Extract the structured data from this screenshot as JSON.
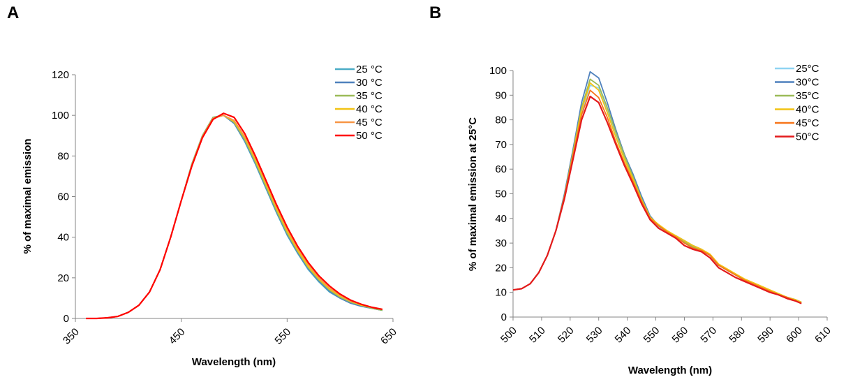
{
  "chart_data": [
    {
      "panel_label": "A",
      "type": "line",
      "xlabel": "Wavelength (nm)",
      "ylabel": "% of maximal emission",
      "xlim": [
        350,
        650
      ],
      "ylim": [
        0,
        120
      ],
      "xticks": [
        350,
        450,
        550,
        650
      ],
      "yticks": [
        0,
        20,
        40,
        60,
        80,
        100,
        120
      ],
      "grid": false,
      "legend_position": "top-right",
      "x": [
        360,
        370,
        380,
        390,
        400,
        410,
        420,
        430,
        440,
        450,
        460,
        470,
        480,
        490,
        500,
        510,
        520,
        530,
        540,
        550,
        560,
        570,
        580,
        590,
        600,
        610,
        620,
        630,
        640
      ],
      "series": [
        {
          "name": "25 °C",
          "color": "#4bacc6",
          "values": [
            0,
            0,
            0.3,
            1,
            3,
            6.5,
            13,
            24,
            40,
            58,
            76,
            90,
            99,
            100,
            96,
            87,
            76,
            64,
            52,
            41,
            32,
            24,
            18,
            13,
            10,
            7.5,
            6,
            5,
            4
          ]
        },
        {
          "name": "30 °C",
          "color": "#4f81bd",
          "values": [
            0,
            0,
            0.3,
            1,
            3,
            6.5,
            13,
            24,
            40,
            58,
            76,
            90,
            99,
            100,
            96,
            87.5,
            76.5,
            64.5,
            52.5,
            41.5,
            32.5,
            24.5,
            18.5,
            13.5,
            10,
            7.5,
            6,
            5,
            4
          ]
        },
        {
          "name": "35 °C",
          "color": "#9bbb59",
          "values": [
            0,
            0,
            0.3,
            1,
            3,
            6.5,
            13,
            24,
            40,
            58,
            76,
            90,
            99,
            100,
            96.5,
            88,
            77,
            65,
            53,
            42,
            33,
            25,
            19,
            14,
            10.5,
            8,
            6.5,
            5,
            4
          ]
        },
        {
          "name": "40 °C",
          "color": "#f2c314",
          "values": [
            0,
            0,
            0.3,
            1,
            3,
            6.5,
            13,
            24,
            40,
            58,
            75.5,
            89.5,
            98.5,
            100,
            97,
            89,
            78,
            66,
            54,
            43,
            33.5,
            25.5,
            19.5,
            14.5,
            11,
            8.5,
            6.5,
            5.5,
            4.5
          ]
        },
        {
          "name": "45 °C",
          "color": "#f79646",
          "values": [
            0,
            0,
            0.3,
            1,
            3,
            6.5,
            13,
            24,
            40,
            58,
            75.5,
            89.5,
            98.5,
            100,
            97.5,
            89.5,
            79,
            67,
            55,
            44,
            34.5,
            26.5,
            20,
            15,
            11.5,
            8.5,
            7,
            5.5,
            4.5
          ]
        },
        {
          "name": "50 °C",
          "color": "#ff0000",
          "values": [
            0,
            0,
            0.3,
            1,
            3,
            6.5,
            13,
            24,
            40,
            58,
            75,
            89,
            98,
            101,
            99,
            91,
            80,
            68,
            56,
            45,
            35.5,
            27.5,
            21,
            16,
            12,
            9,
            7,
            5.5,
            4.5
          ]
        }
      ]
    },
    {
      "panel_label": "B",
      "type": "line",
      "xlabel": "Wavelength (nm)",
      "ylabel": "% of maximal emission at 25°C",
      "xlim": [
        500,
        610
      ],
      "ylim": [
        0,
        100
      ],
      "xticks": [
        500,
        510,
        520,
        530,
        540,
        550,
        560,
        570,
        580,
        590,
        600,
        610
      ],
      "yticks": [
        0,
        10,
        20,
        30,
        40,
        50,
        60,
        70,
        80,
        90,
        100
      ],
      "grid": false,
      "legend_position": "top-right",
      "x": [
        500,
        503,
        506,
        509,
        512,
        515,
        518,
        521,
        524,
        527,
        530,
        533,
        536,
        539,
        542,
        545,
        548,
        551,
        554,
        557,
        560,
        563,
        566,
        569,
        572,
        575,
        578,
        581,
        584,
        587,
        590,
        593,
        596,
        599,
        601
      ],
      "series": [
        {
          "name": "25°C",
          "color": "#8fd4f2",
          "values": [
            11,
            11.5,
            13.5,
            18,
            25,
            35,
            49,
            66,
            83,
            94,
            93,
            84,
            74,
            65,
            57,
            48,
            40,
            36.5,
            34,
            32.5,
            30.5,
            28.5,
            27,
            25,
            21,
            19,
            17,
            15,
            13.5,
            12,
            10.5,
            9,
            8,
            7,
            6
          ]
        },
        {
          "name": "30°C",
          "color": "#4f81bd",
          "values": [
            11,
            11.5,
            13.5,
            18,
            25,
            35,
            50,
            68,
            87,
            99.5,
            97,
            87,
            76,
            66,
            58,
            49,
            41,
            37,
            34.5,
            33,
            31,
            29,
            27.5,
            25,
            21,
            19,
            17,
            15,
            13.5,
            12,
            10.5,
            9,
            8,
            7,
            6
          ]
        },
        {
          "name": "35°C",
          "color": "#9bbb59",
          "values": [
            11,
            11.5,
            13.5,
            18,
            25,
            35,
            49,
            67,
            85,
            96.5,
            94,
            85,
            75,
            65.5,
            57,
            48,
            40.5,
            37,
            34.5,
            32.5,
            30.5,
            28.5,
            27,
            25,
            21,
            19,
            17,
            15,
            13.5,
            12,
            10.5,
            9,
            8,
            7,
            6
          ]
        },
        {
          "name": "40°C",
          "color": "#f2c314",
          "values": [
            11,
            11.5,
            13.5,
            18,
            25,
            35,
            49,
            66,
            84,
            95,
            92,
            83,
            73,
            64,
            56,
            47.5,
            40.5,
            37.5,
            35,
            33,
            31,
            29,
            27.5,
            25.5,
            21.5,
            19.5,
            17.5,
            15.5,
            14,
            12.5,
            11,
            9.5,
            8,
            7,
            6
          ]
        },
        {
          "name": "45°C",
          "color": "#f7751a",
          "values": [
            11,
            11.5,
            13.5,
            18,
            25,
            35,
            49,
            65.5,
            82,
            92,
            89,
            81,
            71,
            62.5,
            55,
            47,
            40,
            37,
            34.5,
            32.5,
            30,
            28,
            27,
            25,
            21,
            19,
            17,
            15,
            13.5,
            12,
            10.5,
            9,
            8,
            6.5,
            5.5
          ]
        },
        {
          "name": "50°C",
          "color": "#e31a1c",
          "values": [
            11,
            11.5,
            13.5,
            18,
            25,
            35,
            48,
            64,
            80,
            89.5,
            87,
            79,
            70,
            61.5,
            54,
            46,
            39.5,
            36,
            34,
            32,
            29,
            27.5,
            26.5,
            24,
            20,
            18,
            16,
            14.5,
            13,
            11.5,
            10,
            9,
            7.5,
            6.5,
            5.5
          ]
        }
      ]
    }
  ]
}
